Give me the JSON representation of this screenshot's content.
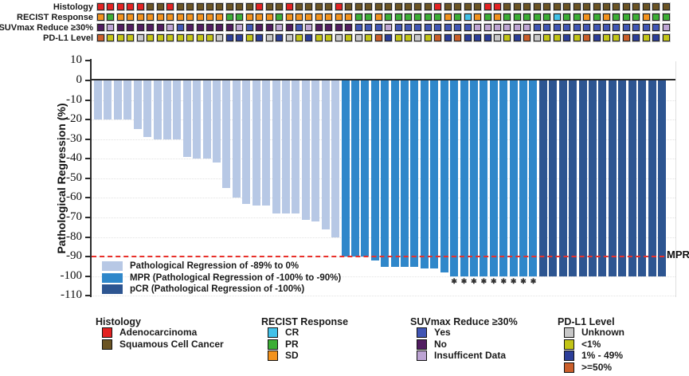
{
  "tracks": {
    "labels": [
      "Histology",
      "RECIST Response",
      "SUVmax Reduce ≥30%",
      "PD-L1 Level"
    ],
    "histology": [
      "A",
      "A",
      "A",
      "A",
      "A",
      "S",
      "S",
      "A",
      "S",
      "S",
      "S",
      "S",
      "S",
      "S",
      "S",
      "S",
      "A",
      "S",
      "S",
      "A",
      "S",
      "S",
      "S",
      "S",
      "A",
      "S",
      "S",
      "S",
      "S",
      "S",
      "S",
      "S",
      "S",
      "S",
      "A",
      "S",
      "S",
      "S",
      "S",
      "A",
      "A",
      "S",
      "S",
      "S",
      "S",
      "S",
      "S",
      "S",
      "S",
      "S",
      "S",
      "S",
      "S",
      "S",
      "S",
      "S",
      "S",
      "S"
    ],
    "recist": [
      "SD",
      "PR",
      "SD",
      "SD",
      "SD",
      "SD",
      "SD",
      "SD",
      "SD",
      "SD",
      "SD",
      "SD",
      "SD",
      "PR",
      "PR",
      "SD",
      "SD",
      "SD",
      "PR",
      "SD",
      "SD",
      "SD",
      "SD",
      "SD",
      "SD",
      "SD",
      "PR",
      "PR",
      "SD",
      "PR",
      "PR",
      "PR",
      "PR",
      "PR",
      "PR",
      "SD",
      "PR",
      "CR",
      "SD",
      "PR",
      "SD",
      "PR",
      "PR",
      "PR",
      "PR",
      "PR",
      "CR",
      "PR",
      "PR",
      "SD",
      "PR",
      "SD",
      "PR",
      "PR",
      "PR",
      "SD",
      "PR",
      "PR"
    ],
    "suvmax": [
      "No",
      "ID",
      "No",
      "No",
      "No",
      "No",
      "No",
      "ID",
      "Yes",
      "No",
      "No",
      "No",
      "No",
      "No",
      "ID",
      "Yes",
      "No",
      "No",
      "ID",
      "No",
      "Yes",
      "ID",
      "No",
      "No",
      "No",
      "No",
      "Yes",
      "Yes",
      "Yes",
      "ID",
      "Yes",
      "Yes",
      "Yes",
      "Yes",
      "Yes",
      "Yes",
      "Yes",
      "Yes",
      "ID",
      "ID",
      "ID",
      "ID",
      "ID",
      "ID",
      "Yes",
      "Yes",
      "Yes",
      "Yes",
      "Yes",
      "Yes",
      "Yes",
      "Yes",
      "Yes",
      "Yes",
      "Yes",
      "Yes",
      "Yes",
      "ID"
    ],
    "pdl1": [
      "O",
      "Y",
      "Y",
      "Y",
      "U",
      "Y",
      "Y",
      "Y",
      "Y",
      "Y",
      "Y",
      "Y",
      "U",
      "B",
      "B",
      "Y",
      "B",
      "U",
      "B",
      "U",
      "Y",
      "B",
      "Y",
      "Y",
      "U",
      "Y",
      "U",
      "Y",
      "O",
      "B",
      "Y",
      "Y",
      "U",
      "Y",
      "O",
      "B",
      "O",
      "B",
      "B",
      "B",
      "U",
      "Y",
      "B",
      "O",
      "U",
      "Y",
      "Y",
      "B",
      "Y",
      "O",
      "B",
      "Y",
      "Y",
      "O",
      "B",
      "Y",
      "B",
      "Y"
    ]
  },
  "colors": {
    "histology": {
      "A": "#e32222",
      "S": "#6b5424"
    },
    "recist": {
      "SD": "#f2921d",
      "PR": "#3cae35",
      "CR": "#41c1e8"
    },
    "suvmax": {
      "Yes": "#4156b5",
      "No": "#511d61",
      "ID": "#bda4d4"
    },
    "pdl1": {
      "U": "#c7c7c7",
      "Y": "#c2c417",
      "B": "#2c3e99",
      "O": "#cb5f2a"
    },
    "bar": {
      "L": "#b7c8e5",
      "M": "#2f87ca",
      "P": "#2d5591"
    },
    "reference_line": "#e8302a"
  },
  "chart_data": {
    "type": "bar",
    "subtype": "waterfall",
    "title": "",
    "xlabel": "",
    "ylabel": "Pathological Regression (%)",
    "ylim": [
      -110,
      10
    ],
    "yticks": [
      10,
      0,
      -10,
      -20,
      -30,
      -40,
      -50,
      -60,
      -70,
      -80,
      -90,
      -100,
      -110
    ],
    "grid": "faint horizontal dotted",
    "values": [
      -20,
      -20,
      -20,
      -20,
      -25,
      -29,
      -30,
      -30,
      -30,
      -39,
      -40,
      -40,
      -42,
      -55,
      -60,
      -63,
      -64,
      -64,
      -68,
      -68,
      -68,
      -71,
      -72,
      -76,
      -80,
      -90,
      -90,
      -90,
      -92,
      -95,
      -95,
      -95,
      -95,
      -96,
      -96,
      -98,
      -100,
      -100,
      -100,
      -100,
      -100,
      -100,
      -100,
      -100,
      -100,
      -100,
      -100,
      -100,
      -100,
      -100,
      -100,
      -100,
      -100,
      -100,
      -100,
      -100,
      -100,
      -100
    ],
    "groups": [
      "L",
      "L",
      "L",
      "L",
      "L",
      "L",
      "L",
      "L",
      "L",
      "L",
      "L",
      "L",
      "L",
      "L",
      "L",
      "L",
      "L",
      "L",
      "L",
      "L",
      "L",
      "L",
      "L",
      "L",
      "L",
      "M",
      "M",
      "M",
      "M",
      "M",
      "M",
      "M",
      "M",
      "M",
      "M",
      "M",
      "M",
      "M",
      "M",
      "M",
      "M",
      "M",
      "M",
      "M",
      "M",
      "P",
      "P",
      "P",
      "P",
      "P",
      "P",
      "P",
      "P",
      "P",
      "P",
      "P",
      "P",
      "P"
    ],
    "asterisk_bar_indices": [
      36,
      37,
      38,
      39,
      40,
      41,
      42,
      43,
      44
    ],
    "asterisk_symbol": "✱",
    "reference_line": {
      "value": -90,
      "label": "MPR",
      "style": "dashed"
    },
    "legend_position": "inside bottom-left",
    "legend": [
      {
        "key": "L",
        "label": "Pathological Regression of -89% to 0%"
      },
      {
        "key": "M",
        "label": "MPR (Pathological Regression of -100% to -90%)"
      },
      {
        "key": "P",
        "label": "pCR (Pathological Regression of -100%)"
      }
    ]
  },
  "bottom_legend": {
    "groups": [
      {
        "title": "Histology",
        "items": [
          {
            "label": "Adenocarcinoma",
            "color": "#e32222"
          },
          {
            "label": "Squamous Cell Cancer",
            "color": "#6b5424"
          }
        ]
      },
      {
        "title": "RECIST Response",
        "items": [
          {
            "label": "CR",
            "color": "#41c1e8"
          },
          {
            "label": "PR",
            "color": "#3cae35"
          },
          {
            "label": "SD",
            "color": "#f2921d"
          }
        ]
      },
      {
        "title": "SUVmax Reduce ≥30%",
        "items": [
          {
            "label": "Yes",
            "color": "#4156b5"
          },
          {
            "label": "No",
            "color": "#511d61"
          },
          {
            "label": "Insufficent Data",
            "color": "#bda4d4"
          }
        ]
      },
      {
        "title": "PD-L1 Level",
        "items": [
          {
            "label": "Unknown",
            "color": "#c7c7c7"
          },
          {
            "label": "<1%",
            "color": "#c2c417"
          },
          {
            "label": "1% - 49%",
            "color": "#2c3e99"
          },
          {
            "label": ">=50%",
            "color": "#cb5f2a"
          }
        ]
      }
    ]
  }
}
